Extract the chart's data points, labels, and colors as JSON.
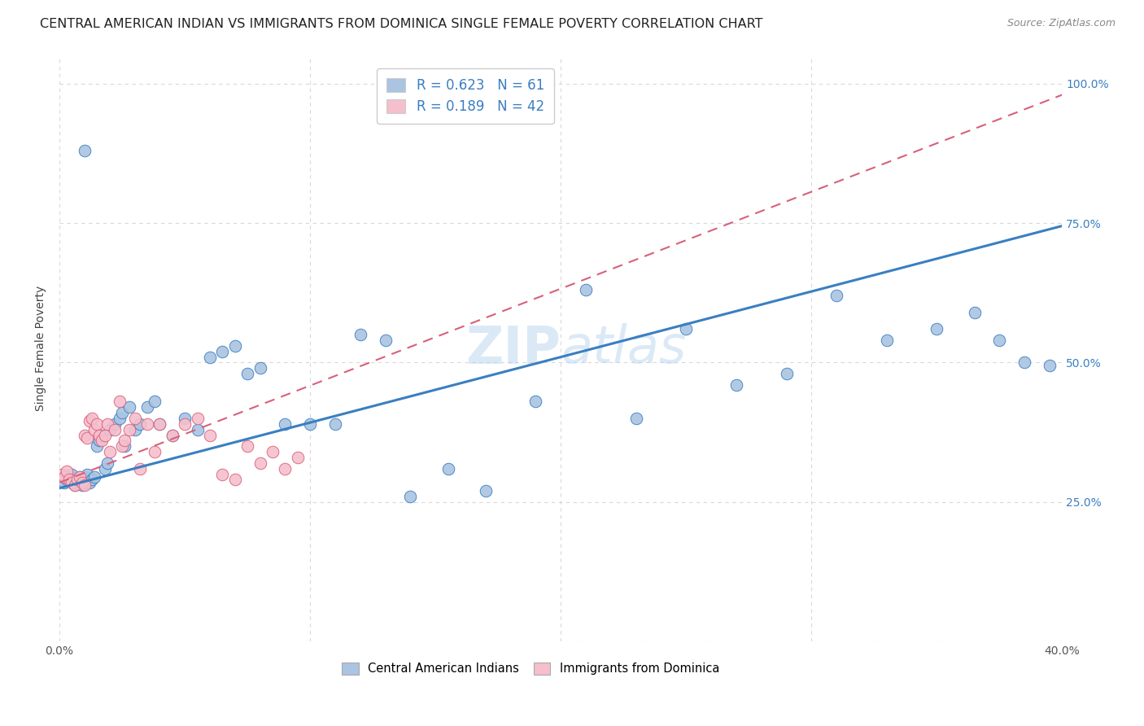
{
  "title": "CENTRAL AMERICAN INDIAN VS IMMIGRANTS FROM DOMINICA SINGLE FEMALE POVERTY CORRELATION CHART",
  "source": "Source: ZipAtlas.com",
  "ylabel": "Single Female Poverty",
  "x_min": 0.0,
  "x_max": 0.4,
  "y_min": 0.0,
  "y_max": 1.05,
  "color_blue": "#aac4e2",
  "color_pink": "#f5bfcd",
  "line_blue": "#3a7fc1",
  "line_pink": "#d9607a",
  "watermark_color": "#c8dff5",
  "background_color": "#ffffff",
  "grid_color": "#d8d8d8",
  "title_fontsize": 11.5,
  "axis_label_fontsize": 10,
  "tick_fontsize": 10,
  "blue_scatter_x": [
    0.002,
    0.003,
    0.004,
    0.005,
    0.006,
    0.007,
    0.008,
    0.008,
    0.009,
    0.01,
    0.01,
    0.011,
    0.012,
    0.013,
    0.014,
    0.015,
    0.016,
    0.017,
    0.018,
    0.019,
    0.02,
    0.022,
    0.024,
    0.025,
    0.026,
    0.028,
    0.03,
    0.032,
    0.035,
    0.038,
    0.04,
    0.045,
    0.05,
    0.055,
    0.06,
    0.065,
    0.07,
    0.075,
    0.08,
    0.09,
    0.1,
    0.11,
    0.12,
    0.13,
    0.14,
    0.155,
    0.17,
    0.19,
    0.21,
    0.23,
    0.25,
    0.27,
    0.29,
    0.31,
    0.33,
    0.35,
    0.365,
    0.375,
    0.385,
    0.395,
    0.01
  ],
  "blue_scatter_y": [
    0.285,
    0.29,
    0.295,
    0.3,
    0.28,
    0.285,
    0.29,
    0.295,
    0.28,
    0.285,
    0.295,
    0.3,
    0.285,
    0.29,
    0.295,
    0.35,
    0.36,
    0.37,
    0.31,
    0.32,
    0.38,
    0.39,
    0.4,
    0.41,
    0.35,
    0.42,
    0.38,
    0.39,
    0.42,
    0.43,
    0.39,
    0.37,
    0.4,
    0.38,
    0.51,
    0.52,
    0.53,
    0.48,
    0.49,
    0.39,
    0.39,
    0.39,
    0.55,
    0.54,
    0.26,
    0.31,
    0.27,
    0.43,
    0.63,
    0.4,
    0.56,
    0.46,
    0.48,
    0.62,
    0.54,
    0.56,
    0.59,
    0.54,
    0.5,
    0.495,
    0.88
  ],
  "pink_scatter_x": [
    0.001,
    0.002,
    0.003,
    0.004,
    0.005,
    0.006,
    0.007,
    0.008,
    0.009,
    0.01,
    0.01,
    0.011,
    0.012,
    0.013,
    0.014,
    0.015,
    0.016,
    0.017,
    0.018,
    0.019,
    0.02,
    0.022,
    0.024,
    0.025,
    0.026,
    0.028,
    0.03,
    0.032,
    0.035,
    0.038,
    0.04,
    0.045,
    0.05,
    0.055,
    0.06,
    0.065,
    0.07,
    0.075,
    0.08,
    0.085,
    0.09,
    0.095
  ],
  "pink_scatter_y": [
    0.3,
    0.295,
    0.305,
    0.29,
    0.285,
    0.28,
    0.29,
    0.295,
    0.285,
    0.28,
    0.37,
    0.365,
    0.395,
    0.4,
    0.38,
    0.39,
    0.37,
    0.36,
    0.37,
    0.39,
    0.34,
    0.38,
    0.43,
    0.35,
    0.36,
    0.38,
    0.4,
    0.31,
    0.39,
    0.34,
    0.39,
    0.37,
    0.39,
    0.4,
    0.37,
    0.3,
    0.29,
    0.35,
    0.32,
    0.34,
    0.31,
    0.33
  ],
  "blue_line_x0": 0.0,
  "blue_line_x1": 0.4,
  "blue_line_y0": 0.275,
  "blue_line_y1": 0.745,
  "pink_line_x0": 0.0,
  "pink_line_x1": 0.4,
  "pink_line_y0": 0.285,
  "pink_line_y1": 0.98
}
